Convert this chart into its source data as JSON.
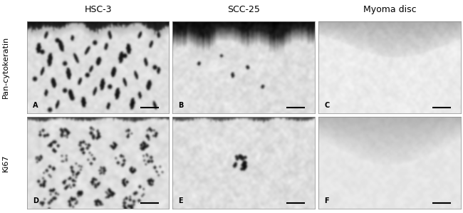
{
  "col_labels": [
    "HSC-3",
    "SCC-25",
    "Myoma disc"
  ],
  "row_labels": [
    "Pan-cytokeratin",
    "Ki67"
  ],
  "panel_letters": [
    "A",
    "B",
    "C",
    "D",
    "E",
    "F"
  ],
  "background_color": "#ffffff",
  "panel_letter_fontsize": 7,
  "col_label_fontsize": 9,
  "row_label_fontsize": 8,
  "figure_width": 6.5,
  "figure_height": 2.99,
  "dpi": 100,
  "scale_bar_color": "#000000"
}
